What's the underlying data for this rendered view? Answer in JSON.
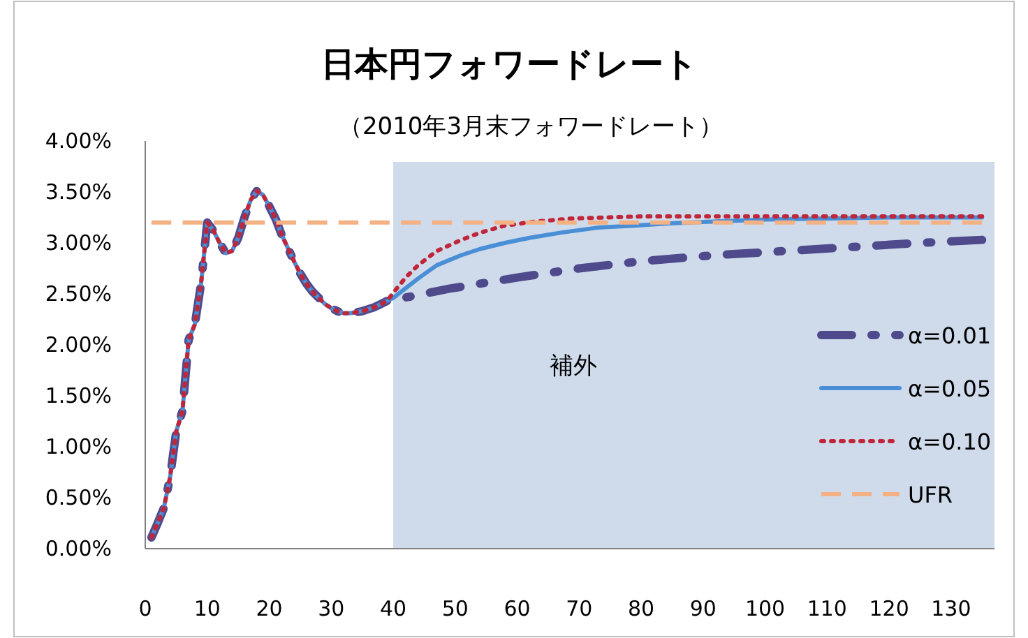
{
  "chart_data": {
    "type": "line",
    "title": "日本円フォワードレート",
    "subtitle": "（2010年3月末フォワードレート）",
    "xlim": [
      0,
      137
    ],
    "xticks": [
      0,
      10,
      20,
      30,
      40,
      50,
      60,
      70,
      80,
      90,
      100,
      110,
      120,
      130
    ],
    "ylim": [
      0,
      4
    ],
    "yticks": [
      {
        "value": 0,
        "label": "0.00%"
      },
      {
        "value": 0.5,
        "label": "0.50%"
      },
      {
        "value": 1,
        "label": "1.00%"
      },
      {
        "value": 1.5,
        "label": "1.50%"
      },
      {
        "value": 2,
        "label": "2.00%"
      },
      {
        "value": 2.5,
        "label": "2.50%"
      },
      {
        "value": 3,
        "label": "3.00%"
      },
      {
        "value": 3.5,
        "label": "3.50%"
      },
      {
        "value": 4,
        "label": "4.00%"
      }
    ],
    "bands": [
      {
        "axis": "x",
        "from": 40,
        "to": 137,
        "label": "補外",
        "color": "#cfdbeb"
      }
    ],
    "legend": "bottom right",
    "series": [
      {
        "name": "α=0.01",
        "color": "#4f4a8c",
        "line_style": "dashdot",
        "x": [
          1,
          2,
          3,
          4,
          5,
          6,
          7,
          8,
          9,
          10,
          11,
          12,
          13,
          14,
          15,
          16,
          17,
          18,
          19,
          20,
          21,
          22,
          23,
          24,
          25,
          26,
          27,
          28,
          29,
          30,
          31,
          32,
          33,
          34,
          35,
          36,
          37,
          38,
          39,
          40,
          49,
          60,
          70,
          80,
          92,
          103,
          114,
          125,
          135
        ],
        "values": [
          0.11,
          0.25,
          0.4,
          0.7,
          1.15,
          1.35,
          2.05,
          2.2,
          2.6,
          3.2,
          3.12,
          3.0,
          2.9,
          2.92,
          3.05,
          3.25,
          3.42,
          3.51,
          3.47,
          3.36,
          3.24,
          3.08,
          2.95,
          2.82,
          2.7,
          2.6,
          2.52,
          2.46,
          2.4,
          2.36,
          2.33,
          2.31,
          2.31,
          2.32,
          2.33,
          2.35,
          2.37,
          2.4,
          2.43,
          2.44,
          2.55,
          2.66,
          2.75,
          2.82,
          2.88,
          2.92,
          2.96,
          3.0,
          3.03
        ]
      },
      {
        "name": "α=0.05",
        "color": "#4a8fd6",
        "line_style": "solid",
        "x": [
          1,
          2,
          3,
          4,
          5,
          6,
          7,
          8,
          9,
          10,
          11,
          12,
          13,
          14,
          15,
          16,
          17,
          18,
          19,
          20,
          21,
          22,
          23,
          24,
          25,
          26,
          27,
          28,
          29,
          30,
          31,
          32,
          33,
          34,
          35,
          36,
          37,
          38,
          39,
          40,
          44,
          47,
          51,
          54,
          58,
          62,
          67,
          73,
          79,
          84,
          92,
          100,
          110,
          120,
          135
        ],
        "values": [
          0.11,
          0.25,
          0.4,
          0.7,
          1.15,
          1.35,
          2.05,
          2.2,
          2.6,
          3.2,
          3.12,
          3.0,
          2.9,
          2.92,
          3.05,
          3.25,
          3.42,
          3.51,
          3.47,
          3.36,
          3.24,
          3.08,
          2.95,
          2.82,
          2.7,
          2.6,
          2.52,
          2.46,
          2.4,
          2.36,
          2.33,
          2.31,
          2.31,
          2.32,
          2.33,
          2.35,
          2.37,
          2.4,
          2.43,
          2.46,
          2.65,
          2.78,
          2.88,
          2.94,
          3.0,
          3.05,
          3.1,
          3.15,
          3.17,
          3.19,
          3.21,
          3.23,
          3.24,
          3.25,
          3.25
        ]
      },
      {
        "name": "α=0.10",
        "color": "#c0263a",
        "line_style": "dotted",
        "x": [
          1,
          2,
          3,
          4,
          5,
          6,
          7,
          8,
          9,
          10,
          11,
          12,
          13,
          14,
          15,
          16,
          17,
          18,
          19,
          20,
          21,
          22,
          23,
          24,
          25,
          26,
          27,
          28,
          29,
          30,
          31,
          32,
          33,
          34,
          35,
          36,
          37,
          38,
          39,
          40,
          42,
          44,
          47,
          51,
          54,
          58,
          63,
          69,
          80,
          100,
          135
        ],
        "values": [
          0.11,
          0.25,
          0.4,
          0.7,
          1.15,
          1.35,
          2.05,
          2.2,
          2.6,
          3.2,
          3.12,
          3.0,
          2.9,
          2.92,
          3.05,
          3.25,
          3.42,
          3.51,
          3.47,
          3.36,
          3.24,
          3.08,
          2.95,
          2.82,
          2.7,
          2.6,
          2.52,
          2.46,
          2.4,
          2.36,
          2.33,
          2.31,
          2.31,
          2.32,
          2.33,
          2.35,
          2.37,
          2.4,
          2.43,
          2.51,
          2.66,
          2.78,
          2.92,
          3.03,
          3.1,
          3.17,
          3.21,
          3.24,
          3.26,
          3.26,
          3.26
        ]
      },
      {
        "name": "UFR",
        "color": "#f4b183",
        "line_style": "dashed",
        "x": [
          1,
          135
        ],
        "values": [
          3.2,
          3.2
        ]
      }
    ]
  }
}
